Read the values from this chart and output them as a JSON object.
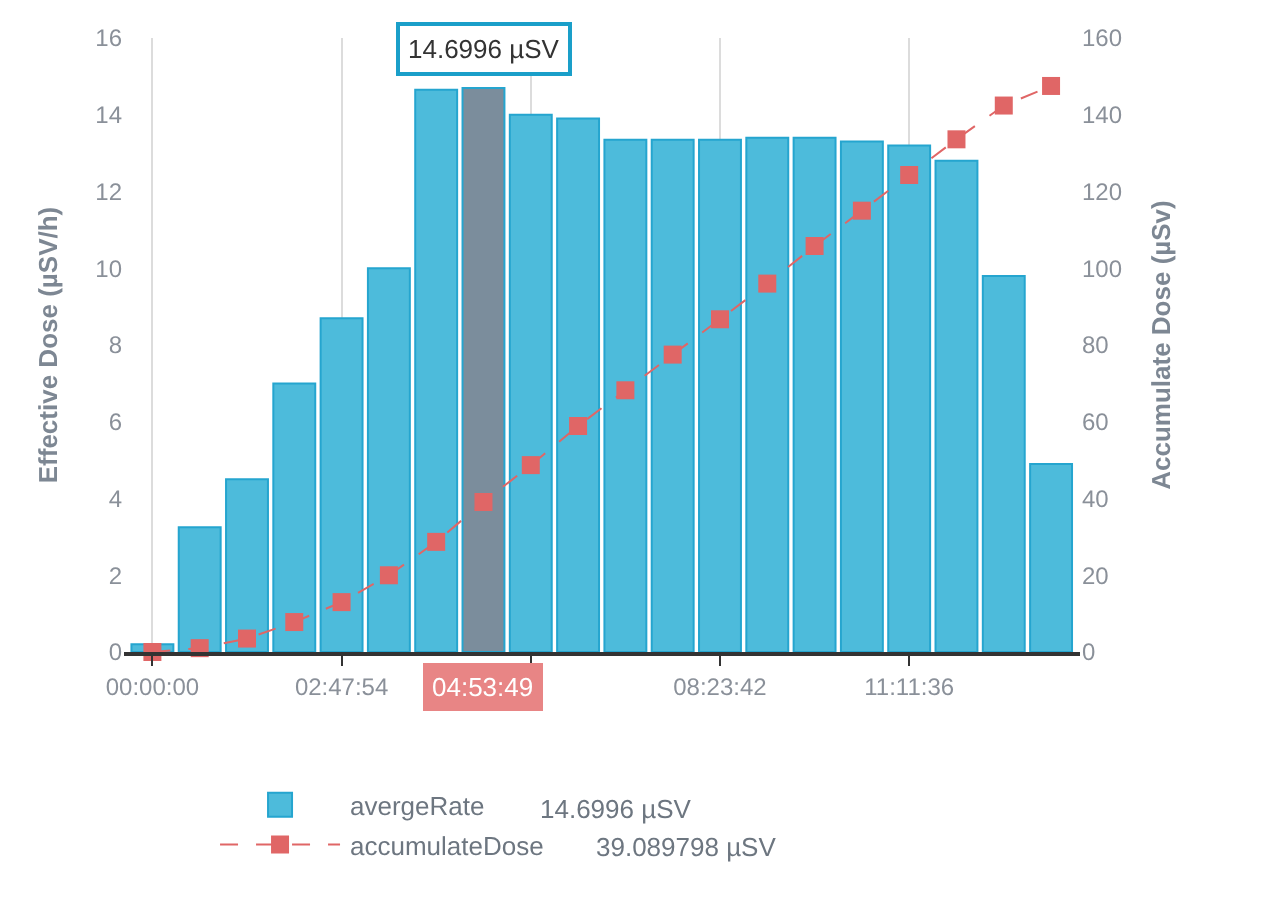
{
  "chart_data": {
    "type": "bar",
    "ylabel": "Effective Dose (µSV/h)",
    "y2label": "Accumulate Dose (µSv)",
    "x": [
      0,
      0.6996,
      1.3992,
      2.0987,
      2.7983,
      3.4979,
      4.1975,
      4.8971,
      5.5967,
      6.2963,
      6.9958,
      7.6954,
      8.395,
      9.0946,
      9.7942,
      10.4938,
      11.1933,
      11.8929,
      12.5925,
      13.2921
    ],
    "series": [
      {
        "name": "avergeRate",
        "colors": [
          "#4dbbdb",
          "#4dbbdb",
          "#4dbbdb",
          "#4dbbdb",
          "#4dbbdb",
          "#4dbbdb",
          "#4dbbdb",
          "#7b8d9c",
          "#4dbbdb",
          "#4dbbdb",
          "#4dbbdb",
          "#4dbbdb",
          "#4dbbdb",
          "#4dbbdb",
          "#4dbbdb",
          "#4dbbdb",
          "#4dbbdb",
          "#4dbbdb",
          "#4dbbdb",
          "#4dbbdb"
        ],
        "values": [
          0.2,
          3.25,
          4.5,
          7.0,
          8.7,
          10.0,
          14.65,
          14.6996,
          14.0,
          13.9,
          13.35,
          13.35,
          13.35,
          13.4,
          13.4,
          13.3,
          13.2,
          12.8,
          9.8,
          4.9
        ]
      },
      {
        "name": "accumulateDose",
        "type": "line",
        "axis": "y2",
        "color": "#e06666",
        "marker": "square",
        "line_style": "dashed",
        "values": [
          0,
          1,
          3.5,
          7.8,
          13,
          20,
          28.7,
          39.089798,
          48.7,
          58.9,
          68.2,
          77.5,
          86.7,
          96,
          105.8,
          115,
          124.3,
          133.6,
          142.4,
          147.5
        ]
      }
    ],
    "xlim": [
      -0.42,
      13.72
    ],
    "xticks": [
      {
        "value": 0,
        "label": "00:00:00"
      },
      {
        "value": 2.79833,
        "label": "02:47:54"
      },
      {
        "value": 5.59667,
        "label": null
      },
      {
        "value": 8.395,
        "label": "08:23:42"
      },
      {
        "value": 11.19333,
        "label": "11:11:36"
      }
    ],
    "ylim": [
      0,
      16
    ],
    "yticks": [
      0,
      2,
      4,
      6,
      8,
      10,
      12,
      14,
      16
    ],
    "y2lim": [
      0,
      160
    ],
    "y2ticks": [
      0,
      20,
      40,
      60,
      80,
      100,
      120,
      140,
      160
    ],
    "grid": "x",
    "legend": "bottom",
    "annotations": [
      {
        "text": "14.6996 µSV",
        "x": 4.8971,
        "y": 14.6996
      },
      "04:53:49",
      "14.6996 µSV",
      "39.089798 µSV"
    ]
  }
}
